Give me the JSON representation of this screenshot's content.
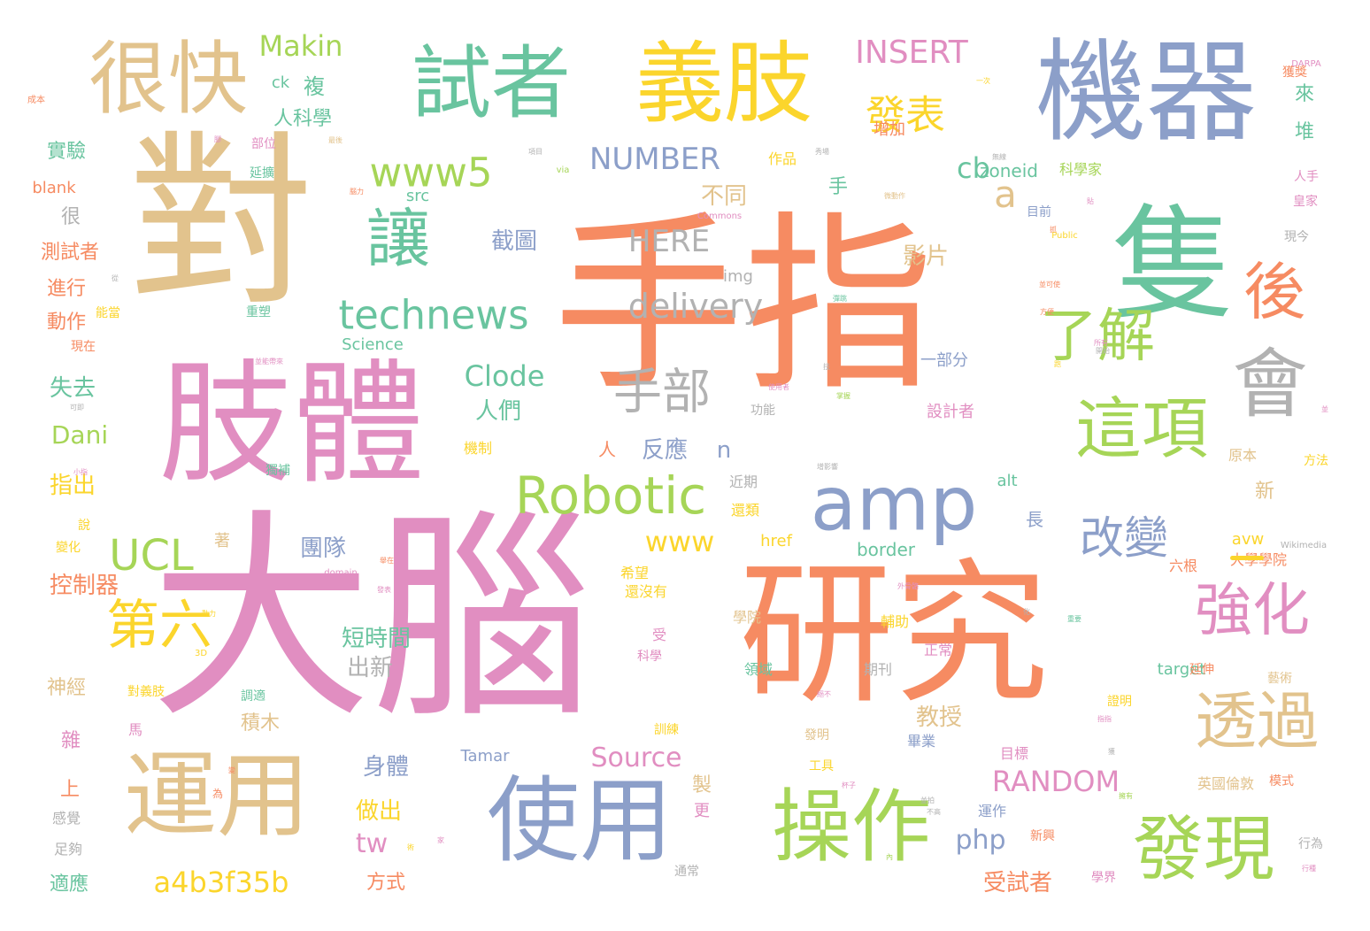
{
  "palette": {
    "orange": "#f68b62",
    "green": "#69c49f",
    "blue": "#8c9fc9",
    "pink": "#e18ec1",
    "lime": "#a6d557",
    "yellow": "#fbd52c",
    "tan": "#e2c38d",
    "gray": "#b2b2b2"
  },
  "words": [
    {
      "text": "手指",
      "color": "orange"
    },
    {
      "text": "大腦",
      "color": "pink"
    },
    {
      "text": "對",
      "color": "tan"
    },
    {
      "text": "研究",
      "color": "orange"
    },
    {
      "text": "肢體",
      "color": "pink"
    },
    {
      "text": "隻",
      "color": "green"
    },
    {
      "text": "機器",
      "color": "blue"
    },
    {
      "text": "義肢",
      "color": "yellow"
    },
    {
      "text": "試者",
      "color": "green"
    },
    {
      "text": "很快",
      "color": "tan"
    },
    {
      "text": "使用",
      "color": "blue"
    },
    {
      "text": "運用",
      "color": "tan"
    },
    {
      "text": "操作",
      "color": "lime"
    },
    {
      "text": "amp",
      "color": "blue"
    },
    {
      "text": "會",
      "color": "gray"
    },
    {
      "text": "發現",
      "color": "lime"
    },
    {
      "text": "這項",
      "color": "lime"
    },
    {
      "text": "透過",
      "color": "tan"
    },
    {
      "text": "強化",
      "color": "pink"
    },
    {
      "text": "讓",
      "color": "green"
    },
    {
      "text": "後",
      "color": "orange"
    },
    {
      "text": "了解",
      "color": "lime"
    },
    {
      "text": "Robotic",
      "color": "lime"
    },
    {
      "text": "手部",
      "color": "gray"
    },
    {
      "text": "改變",
      "color": "blue"
    },
    {
      "text": "第六",
      "color": "yellow"
    },
    {
      "text": "technews",
      "color": "green"
    },
    {
      "text": "www5",
      "color": "lime"
    },
    {
      "text": "UCL",
      "color": "lime"
    },
    {
      "text": "delivery",
      "color": "gray"
    },
    {
      "text": "發表",
      "color": "yellow"
    },
    {
      "text": "INSERT",
      "color": "pink"
    },
    {
      "text": "NUMBER",
      "color": "blue"
    },
    {
      "text": "HERE",
      "color": "gray"
    },
    {
      "text": "a",
      "color": "tan"
    },
    {
      "text": "cb",
      "color": "green"
    },
    {
      "text": "Makin",
      "color": "lime"
    },
    {
      "text": "Clode",
      "color": "green"
    },
    {
      "text": "www",
      "color": "yellow"
    },
    {
      "text": "RANDOM",
      "color": "pink"
    },
    {
      "text": "a4b3f35b",
      "color": "yellow"
    },
    {
      "text": "Source",
      "color": "pink"
    },
    {
      "text": "php",
      "color": "blue"
    },
    {
      "text": "tw",
      "color": "pink"
    },
    {
      "text": "Dani",
      "color": "lime"
    },
    {
      "text": "短時間",
      "color": "green"
    },
    {
      "text": "團隊",
      "color": "blue"
    },
    {
      "text": "截圖",
      "color": "blue"
    },
    {
      "text": "人們",
      "color": "green"
    },
    {
      "text": "反應",
      "color": "blue"
    },
    {
      "text": "教授",
      "color": "tan"
    },
    {
      "text": "身體",
      "color": "blue"
    },
    {
      "text": "做出",
      "color": "yellow"
    },
    {
      "text": "出新",
      "color": "gray"
    },
    {
      "text": "影片",
      "color": "tan"
    },
    {
      "text": "不同",
      "color": "tan"
    },
    {
      "text": "受試者",
      "color": "orange"
    },
    {
      "text": "控制器",
      "color": "orange"
    },
    {
      "text": "指出",
      "color": "yellow"
    },
    {
      "text": "失去",
      "color": "green"
    },
    {
      "text": "動作",
      "color": "orange"
    },
    {
      "text": "進行",
      "color": "orange"
    },
    {
      "text": "測試者",
      "color": "orange"
    },
    {
      "text": "實驗",
      "color": "green"
    },
    {
      "text": "人科學",
      "color": "green"
    },
    {
      "text": "神經",
      "color": "tan"
    },
    {
      "text": "適應",
      "color": "green"
    },
    {
      "text": "方式",
      "color": "orange"
    },
    {
      "text": "積木",
      "color": "tan"
    },
    {
      "text": "zoneid",
      "color": "green"
    },
    {
      "text": "img",
      "color": "gray"
    },
    {
      "text": "blank",
      "color": "orange"
    },
    {
      "text": "src",
      "color": "green"
    },
    {
      "text": "alt",
      "color": "green"
    },
    {
      "text": "border",
      "color": "green"
    },
    {
      "text": "href",
      "color": "yellow"
    },
    {
      "text": "target",
      "color": "green"
    },
    {
      "text": "avw",
      "color": "yellow"
    },
    {
      "text": "Science",
      "color": "green"
    },
    {
      "text": "Tamar",
      "color": "blue"
    },
    {
      "text": "ck",
      "color": "green"
    },
    {
      "text": "n",
      "color": "blue"
    },
    {
      "text": "Commons",
      "color": "pink"
    },
    {
      "text": "Public",
      "color": "yellow"
    },
    {
      "text": "Wikimedia",
      "color": "gray"
    },
    {
      "text": "DARPA",
      "color": "pink"
    },
    {
      "text": "3D",
      "color": "yellow"
    },
    {
      "text": "via",
      "color": "lime"
    },
    {
      "text": "domain",
      "color": "pink"
    },
    {
      "text": "大學學院",
      "color": "orange"
    },
    {
      "text": "英國倫敦",
      "color": "tan"
    },
    {
      "text": "科學家",
      "color": "lime"
    },
    {
      "text": "設計者",
      "color": "pink"
    },
    {
      "text": "一部分",
      "color": "blue"
    },
    {
      "text": "增加",
      "color": "orange"
    },
    {
      "text": "作品",
      "color": "yellow"
    },
    {
      "text": "目前",
      "color": "blue"
    },
    {
      "text": "期刊",
      "color": "gray"
    },
    {
      "text": "學院",
      "color": "tan"
    },
    {
      "text": "希望",
      "color": "yellow"
    },
    {
      "text": "還沒有",
      "color": "yellow"
    },
    {
      "text": "領域",
      "color": "green"
    },
    {
      "text": "輔助",
      "color": "yellow"
    },
    {
      "text": "正常",
      "color": "pink"
    },
    {
      "text": "畢業",
      "color": "blue"
    },
    {
      "text": "目標",
      "color": "pink"
    },
    {
      "text": "運作",
      "color": "blue"
    },
    {
      "text": "新興",
      "color": "orange"
    },
    {
      "text": "通常",
      "color": "gray"
    },
    {
      "text": "學界",
      "color": "pink"
    },
    {
      "text": "行為",
      "color": "gray"
    },
    {
      "text": "模式",
      "color": "orange"
    },
    {
      "text": "藝術",
      "color": "tan"
    },
    {
      "text": "延伸",
      "color": "orange"
    },
    {
      "text": "證明",
      "color": "yellow"
    },
    {
      "text": "方法",
      "color": "yellow"
    },
    {
      "text": "原本",
      "color": "tan"
    },
    {
      "text": "新",
      "color": "tan"
    },
    {
      "text": "六根",
      "color": "orange"
    },
    {
      "text": "長",
      "color": "blue"
    },
    {
      "text": "人",
      "color": "orange"
    },
    {
      "text": "近期",
      "color": "gray"
    },
    {
      "text": "還類",
      "color": "yellow"
    },
    {
      "text": "機制",
      "color": "yellow"
    },
    {
      "text": "功能",
      "color": "gray"
    },
    {
      "text": "訓練",
      "color": "yellow"
    },
    {
      "text": "發明",
      "color": "tan"
    },
    {
      "text": "工具",
      "color": "yellow"
    },
    {
      "text": "科學",
      "color": "pink"
    },
    {
      "text": "受",
      "color": "pink"
    },
    {
      "text": "調適",
      "color": "green"
    },
    {
      "text": "對義肢",
      "color": "yellow"
    },
    {
      "text": "延擴",
      "color": "green"
    },
    {
      "text": "部位",
      "color": "pink"
    },
    {
      "text": "重塑",
      "color": "green"
    },
    {
      "text": "獨補",
      "color": "green"
    },
    {
      "text": "能當",
      "color": "yellow"
    },
    {
      "text": "現在",
      "color": "orange"
    },
    {
      "text": "人手",
      "color": "pink"
    },
    {
      "text": "皇家",
      "color": "pink"
    },
    {
      "text": "現今",
      "color": "gray"
    },
    {
      "text": "獲獎",
      "color": "orange"
    },
    {
      "text": "來",
      "color": "green"
    },
    {
      "text": "堆",
      "color": "green"
    },
    {
      "text": "複",
      "color": "green"
    },
    {
      "text": "手",
      "color": "green"
    },
    {
      "text": "很",
      "color": "gray"
    },
    {
      "text": "上",
      "color": "orange"
    },
    {
      "text": "雜",
      "color": "pink"
    },
    {
      "text": "馬",
      "color": "pink"
    },
    {
      "text": "感覺",
      "color": "gray"
    },
    {
      "text": "足夠",
      "color": "gray"
    },
    {
      "text": "製",
      "color": "tan"
    },
    {
      "text": "更",
      "color": "pink"
    },
    {
      "text": "著",
      "color": "tan"
    },
    {
      "text": "變化",
      "color": "yellow"
    },
    {
      "text": "說",
      "color": "yellow"
    },
    {
      "text": "成本",
      "color": "orange"
    },
    {
      "text": "項目",
      "color": "gray"
    },
    {
      "text": "腦力",
      "color": "orange"
    },
    {
      "text": "動力",
      "color": "yellow"
    },
    {
      "text": "一次",
      "color": "yellow"
    },
    {
      "text": "無線",
      "color": "gray"
    },
    {
      "text": "開始",
      "color": "gray"
    },
    {
      "text": "方便",
      "color": "orange"
    },
    {
      "text": "不高",
      "color": "gray"
    },
    {
      "text": "行種",
      "color": "pink"
    },
    {
      "text": "內",
      "color": "lime"
    },
    {
      "text": "微動作",
      "color": "tan"
    },
    {
      "text": "外骨骼",
      "color": "pink"
    },
    {
      "text": "化",
      "color": "gray"
    },
    {
      "text": "技",
      "color": "gray"
    },
    {
      "text": "術",
      "color": "yellow"
    },
    {
      "text": "家",
      "color": "pink"
    },
    {
      "text": "杯子",
      "color": "pink"
    },
    {
      "text": "絕不",
      "color": "pink"
    },
    {
      "text": "指指",
      "color": "pink"
    },
    {
      "text": "並可使",
      "color": "orange"
    },
    {
      "text": "掌握",
      "color": "lime"
    },
    {
      "text": "彈跳",
      "color": "green"
    },
    {
      "text": "增影響",
      "color": "gray"
    },
    {
      "text": "可即",
      "color": "gray"
    },
    {
      "text": "小指",
      "color": "pink"
    },
    {
      "text": "並能帶來",
      "color": "pink"
    },
    {
      "text": "最後",
      "color": "tan"
    },
    {
      "text": "腳",
      "color": "pink"
    },
    {
      "text": "從",
      "color": "gray"
    },
    {
      "text": "跑",
      "color": "yellow"
    },
    {
      "text": "並拍",
      "color": "gray"
    },
    {
      "text": "為",
      "color": "orange"
    },
    {
      "text": "變",
      "color": "orange"
    },
    {
      "text": "舉在",
      "color": "orange"
    },
    {
      "text": "發表",
      "color": "pink"
    },
    {
      "text": "所有",
      "color": "pink"
    },
    {
      "text": "秀場",
      "color": "gray"
    },
    {
      "text": "使用者",
      "color": "pink"
    },
    {
      "text": "抓",
      "color": "orange"
    },
    {
      "text": "獲",
      "color": "gray"
    },
    {
      "text": "擁有",
      "color": "lime"
    },
    {
      "text": "重要",
      "color": "green"
    },
    {
      "text": "貼",
      "color": "pink"
    },
    {
      "text": "並",
      "color": "pink"
    }
  ]
}
